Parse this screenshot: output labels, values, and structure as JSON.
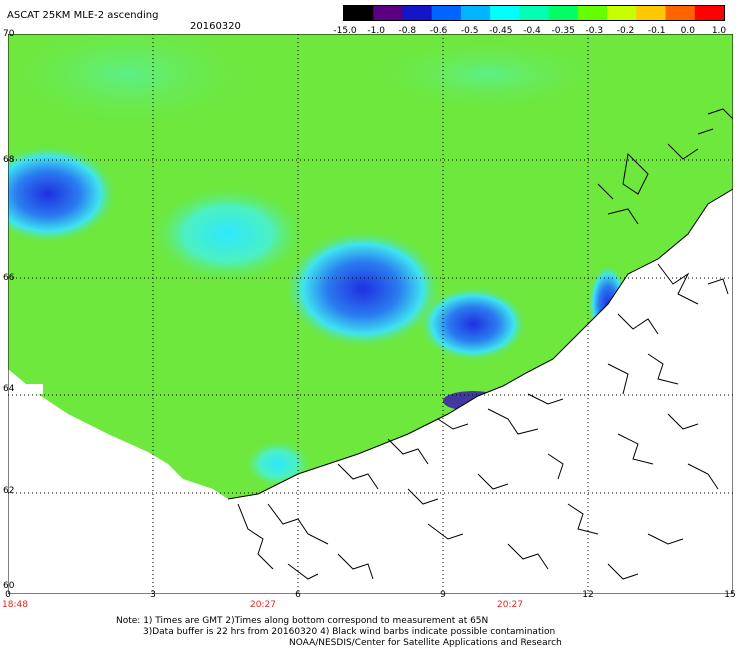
{
  "header": {
    "title": "ASCAT 25KM MLE-2 ascending",
    "date": "20160320"
  },
  "colorbar": {
    "labels": [
      "-15.0",
      "-1.0",
      "-0.8",
      "-0.6",
      "-0.5",
      "-0.45",
      "-0.4",
      "-0.35",
      "-0.3",
      "-0.2",
      "-0.1",
      "0.0",
      "1.0"
    ],
    "colors": [
      "#000000",
      "#5a0080",
      "#1414c8",
      "#0064ff",
      "#00b4ff",
      "#00ffff",
      "#00ffb4",
      "#00ff64",
      "#64ff00",
      "#c8ff00",
      "#ffc800",
      "#ff6400",
      "#ff0000"
    ]
  },
  "map": {
    "lat_labels": [
      "70",
      "68",
      "66",
      "64",
      "62",
      "60"
    ],
    "lon_labels": [
      "0",
      "3",
      "6",
      "9",
      "12",
      "15"
    ],
    "time_labels": [
      "18:48",
      "20:27",
      "20:27"
    ],
    "ocean_color": "#6ee83c",
    "land_color": "#ffffff"
  },
  "footer": {
    "note1": "Note: 1) Times are GMT 2)Times along bottom correspond to measurement at 65N",
    "note2": "3)Data buffer is 22 hrs from 20160320 4) Black wind barbs indicate possible contamination",
    "credit": "NOAA/NESDIS/Center for Satellite Applications and Research"
  }
}
